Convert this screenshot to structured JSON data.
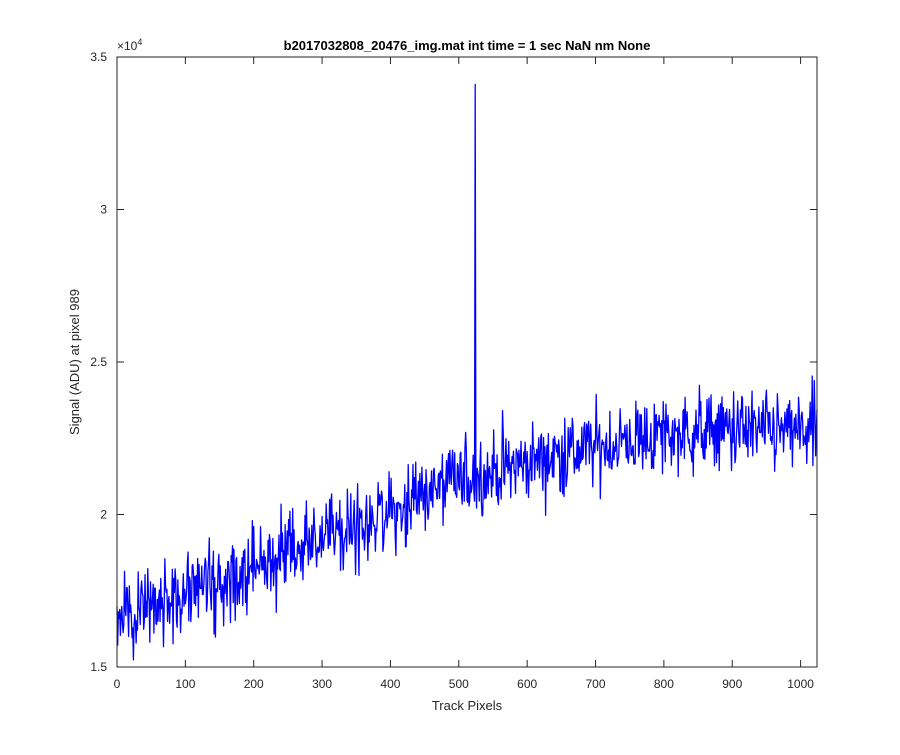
{
  "chart_data": {
    "type": "line",
    "title": "b2017032808_20476_img.mat int time = 1 sec  NaN nm None",
    "xlabel": "Track Pixels",
    "ylabel": "Signal (ADU) at pixel 989",
    "xlim": [
      0,
      1024
    ],
    "ylim": [
      15000,
      35000
    ],
    "y_exponent_label": "×10",
    "y_exponent_power": "4",
    "x_ticks": [
      0,
      100,
      200,
      300,
      400,
      500,
      600,
      700,
      800,
      900,
      1000
    ],
    "x_tick_labels": [
      "0",
      "100",
      "200",
      "300",
      "400",
      "500",
      "600",
      "700",
      "800",
      "900",
      "1000"
    ],
    "y_ticks": [
      15000,
      20000,
      25000,
      30000,
      35000
    ],
    "y_tick_labels": [
      "1.5",
      "2",
      "2.5",
      "3",
      "3.5"
    ],
    "grid": false,
    "legend": "none",
    "line_color": "#0000ff",
    "series": [
      {
        "x_start": 0,
        "x_end": 1024,
        "anchor_x": [
          0,
          50,
          100,
          150,
          200,
          250,
          300,
          350,
          400,
          450,
          500,
          550,
          600,
          650,
          700,
          750,
          800,
          850,
          900,
          950,
          1000,
          1024
        ],
        "anchor_y": [
          16800,
          17100,
          17500,
          17800,
          18300,
          18800,
          19200,
          19600,
          20100,
          20700,
          21100,
          21400,
          21700,
          22000,
          22200,
          22400,
          22600,
          22700,
          22800,
          22700,
          22700,
          22800
        ],
        "noise_amplitude": 650,
        "spikes": [
          {
            "x": 524,
            "y": 34100
          },
          {
            "x": 525,
            "y": 21000
          }
        ]
      }
    ]
  }
}
